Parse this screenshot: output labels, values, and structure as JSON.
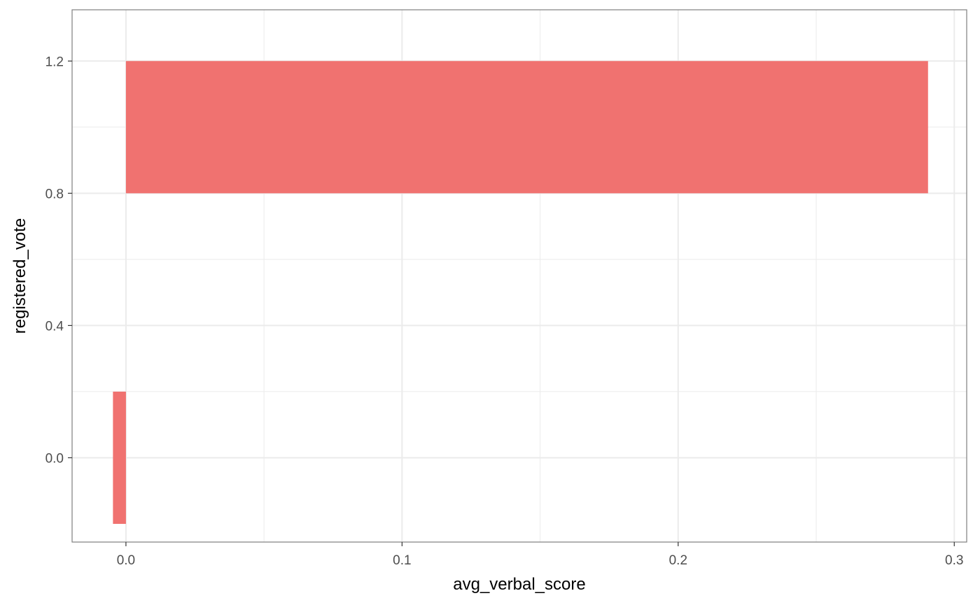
{
  "chart_data": {
    "type": "bar",
    "orientation": "horizontal",
    "title": "",
    "xlabel": "avg_verbal_score",
    "ylabel": "registered_vote",
    "xlim": [
      -0.0195,
      0.3045
    ],
    "ylim": [
      -0.255,
      1.355
    ],
    "x_ticks": [
      {
        "value": 0.0,
        "label": "0.0"
      },
      {
        "value": 0.1,
        "label": "0.1"
      },
      {
        "value": 0.2,
        "label": "0.2"
      },
      {
        "value": 0.3,
        "label": "0.3"
      }
    ],
    "y_ticks": [
      {
        "value": 0.0,
        "label": "0.0"
      },
      {
        "value": 0.4,
        "label": "0.4"
      },
      {
        "value": 0.8,
        "label": "0.8"
      },
      {
        "value": 1.2,
        "label": "1.2"
      }
    ],
    "bar_width": 0.4,
    "bars": [
      {
        "category": 0,
        "value": -0.0047
      },
      {
        "category": 1,
        "value": 0.2905
      }
    ],
    "bar_color": "#F07270",
    "grid": true,
    "grid_color": "#ebebeb",
    "panel_border_color": "#7f7f7f",
    "legend": "none"
  }
}
